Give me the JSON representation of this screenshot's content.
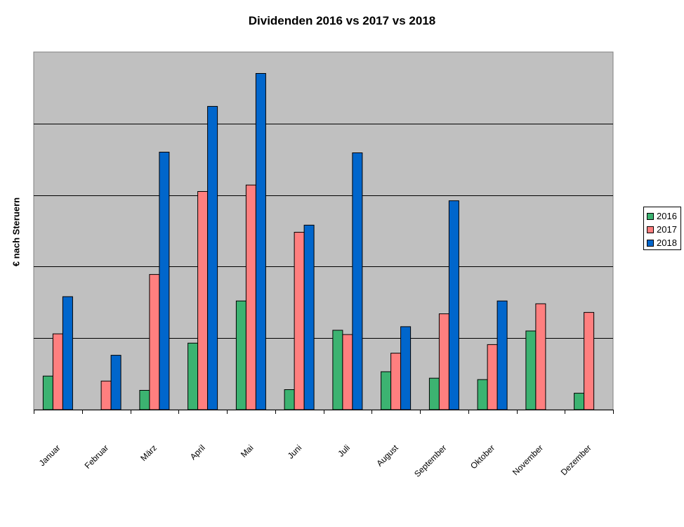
{
  "chart_data": {
    "type": "bar",
    "title": "Dividenden 2016 vs 2017 vs 2018",
    "xlabel": "",
    "ylabel": "€ nach Steruern",
    "ylim": [
      0,
      500
    ],
    "ytick_step": 100,
    "grid": true,
    "legend_position": "right",
    "categories": [
      "Januar",
      "Februar",
      "März",
      "April",
      "Mai",
      "Juni",
      "Juli",
      "August",
      "September",
      "Oktober",
      "November",
      "Dezember"
    ],
    "series": [
      {
        "name": "2016",
        "color": "#3cb371",
        "values": [
          47,
          0,
          27,
          93,
          152,
          28,
          111,
          53,
          44,
          42,
          110,
          23
        ]
      },
      {
        "name": "2017",
        "color": "#ff7f7f",
        "values": [
          106,
          40,
          189,
          305,
          314,
          248,
          105,
          79,
          134,
          91,
          148,
          136
        ]
      },
      {
        "name": "2018",
        "color": "#0066cc",
        "values": [
          158,
          76,
          360,
          424,
          470,
          258,
          359,
          116,
          292,
          152,
          0,
          0
        ]
      }
    ]
  }
}
